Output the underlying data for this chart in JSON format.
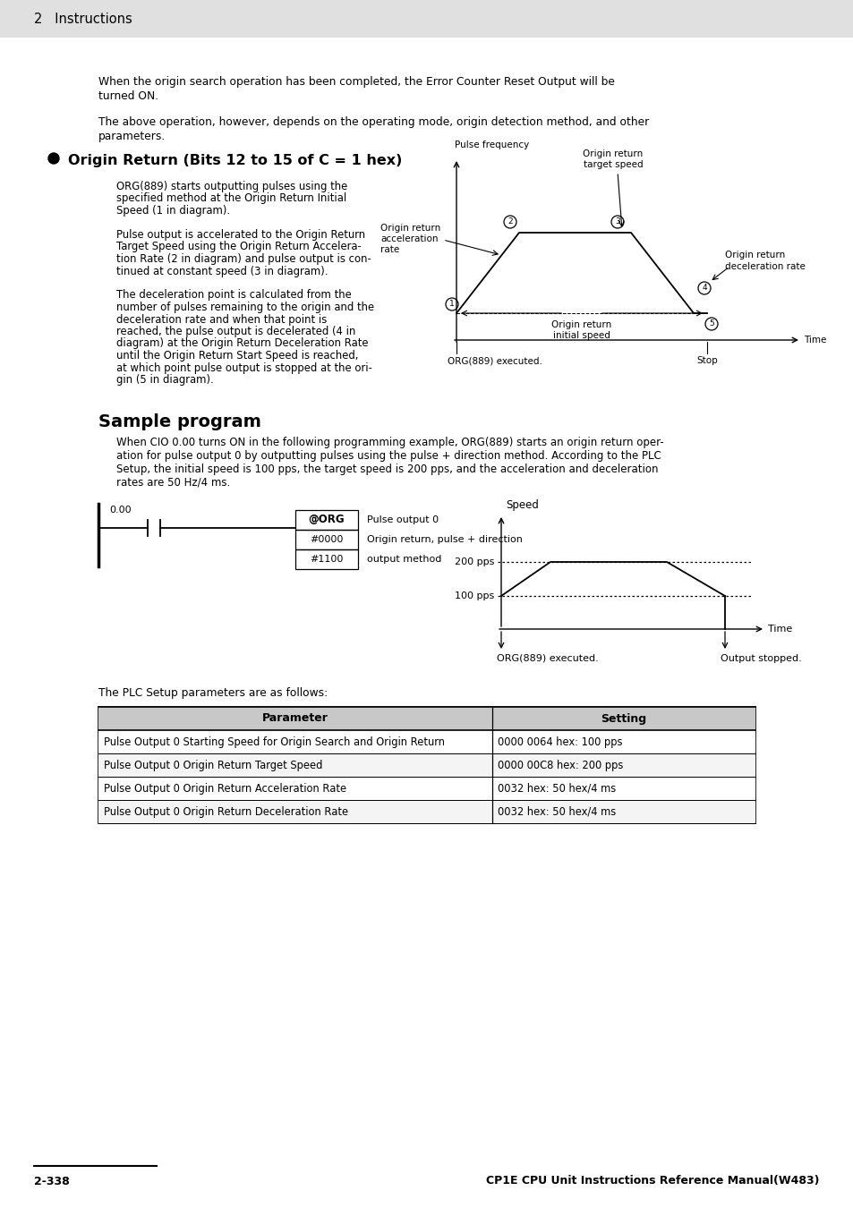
{
  "page_title": "2   Instructions",
  "bg_header_color": "#e0e0e0",
  "bg_color": "#ffffff",
  "text_color": "#000000",
  "para1_line1": "When the origin search operation has been completed, the Error Counter Reset Output will be",
  "para1_line2": "turned ON.",
  "para2_line1": "The above operation, however, depends on the operating mode, origin detection method, and other",
  "para2_line2": "parameters.",
  "section_bullet_title": "Origin Return (Bits 12 to 15 of C = 1 hex)",
  "body_col1_lines": [
    "ORG(889) starts outputting pulses using the",
    "specified method at the Origin Return Initial",
    "Speed (1 in diagram).",
    "",
    "Pulse output is accelerated to the Origin Return",
    "Target Speed using the Origin Return Accelera-",
    "tion Rate (2 in diagram) and pulse output is con-",
    "tinued at constant speed (3 in diagram).",
    "",
    "The deceleration point is calculated from the",
    "number of pulses remaining to the origin and the",
    "deceleration rate and when that point is",
    "reached, the pulse output is decelerated (4 in",
    "diagram) at the Origin Return Deceleration Rate",
    "until the Origin Return Start Speed is reached,",
    "at which point pulse output is stopped at the ori-",
    "gin (5 in diagram)."
  ],
  "sample_title": "Sample program",
  "sample_lines": [
    "When CIO 0.00 turns ON in the following programming example, ORG(889) starts an origin return oper-",
    "ation for pulse output 0 by outputting pulses using the pulse + direction method. According to the PLC",
    "Setup, the initial speed is 100 pps, the target speed is 200 pps, and the acceleration and deceleration",
    "rates are 50 Hz/4 ms."
  ],
  "table_header": [
    "Parameter",
    "Setting"
  ],
  "table_rows": [
    [
      "Pulse Output 0 Starting Speed for Origin Search and Origin Return",
      "0000 0064 hex: 100 pps"
    ],
    [
      "Pulse Output 0 Origin Return Target Speed",
      "0000 00C8 hex: 200 pps"
    ],
    [
      "Pulse Output 0 Origin Return Acceleration Rate",
      "0032 hex: 50 hex/4 ms"
    ],
    [
      "Pulse Output 0 Origin Return Deceleration Rate",
      "0032 hex: 50 hex/4 ms"
    ]
  ],
  "plc_setup_text": "The PLC Setup parameters are as follows:",
  "footer_left": "2-338",
  "footer_right": "CP1E CPU Unit Instructions Reference Manual(W483)",
  "ladder_contact_label": "0.00",
  "ladder_org": "@ORG",
  "ladder_p1": "#0000",
  "ladder_p2": "#1100",
  "ladder_desc1": "Pulse output 0",
  "ladder_desc2": "Origin return, pulse + direction",
  "ladder_desc3": "output method",
  "diag_ylabel": "Pulse frequency",
  "diag_xlabel": "Time",
  "diag_label_target": [
    "Origin return",
    "target speed"
  ],
  "diag_label_accel": [
    "Origin return",
    "acceleration",
    "rate"
  ],
  "diag_label_decel": [
    "Origin return",
    "deceleration rate"
  ],
  "diag_label_initial": [
    "Origin return",
    "initial speed"
  ],
  "diag_executed": "ORG(889) executed.",
  "diag_stop": "Stop",
  "spd_ylabel": "Speed",
  "spd_xlabel": "Time",
  "spd_200": "200 pps",
  "spd_100": "100 pps",
  "spd_exec": "ORG(889) executed.",
  "spd_stopped": "Output stopped."
}
